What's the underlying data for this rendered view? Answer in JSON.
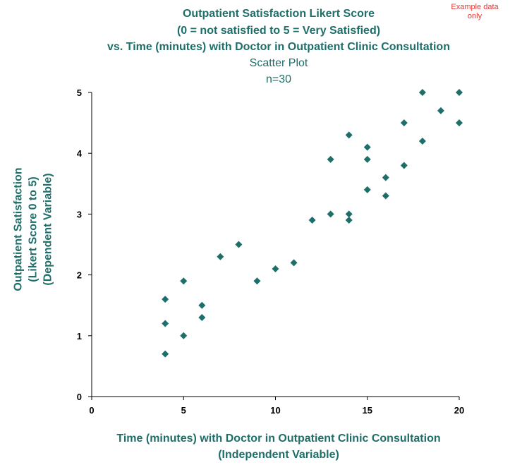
{
  "note": {
    "line1": "Example data",
    "line2": "only"
  },
  "chart_data": {
    "type": "scatter",
    "title": {
      "line1": "Outpatient Satisfaction Likert Score",
      "line2": "(0 = not satisfied to 5 = Very Satisfied)",
      "line3": "vs. Time (minutes) with Doctor in Outpatient Clinic Consultation"
    },
    "subtitle": {
      "line1": "Scatter Plot",
      "line2": "n=30"
    },
    "xlabel": {
      "line1": "Time (minutes) with Doctor in Outpatient Clinic Consultation",
      "line2": "(Independent Variable)"
    },
    "ylabel": {
      "line1": "Outpatient Satisfaction",
      "line2": "(Likert Score 0 to 5)",
      "line3": "(Dependent Variable)"
    },
    "xlim": [
      0,
      20
    ],
    "ylim": [
      0,
      5
    ],
    "xticks": [
      0,
      5,
      10,
      15,
      20
    ],
    "yticks": [
      0,
      1,
      2,
      3,
      4,
      5
    ],
    "grid": false,
    "marker": "diamond",
    "marker_color": "#1e6e6a",
    "points": [
      {
        "x": 4,
        "y": 1.6
      },
      {
        "x": 4,
        "y": 1.2
      },
      {
        "x": 4,
        "y": 0.7
      },
      {
        "x": 5,
        "y": 1.9
      },
      {
        "x": 5,
        "y": 1.0
      },
      {
        "x": 6,
        "y": 1.5
      },
      {
        "x": 6,
        "y": 1.3
      },
      {
        "x": 7,
        "y": 2.3
      },
      {
        "x": 8,
        "y": 2.5
      },
      {
        "x": 9,
        "y": 1.9
      },
      {
        "x": 10,
        "y": 2.1
      },
      {
        "x": 11,
        "y": 2.2
      },
      {
        "x": 12,
        "y": 2.9
      },
      {
        "x": 13,
        "y": 3.9
      },
      {
        "x": 13,
        "y": 3.0
      },
      {
        "x": 14,
        "y": 4.3
      },
      {
        "x": 14,
        "y": 3.0
      },
      {
        "x": 14,
        "y": 2.9
      },
      {
        "x": 15,
        "y": 4.1
      },
      {
        "x": 15,
        "y": 3.9
      },
      {
        "x": 15,
        "y": 3.4
      },
      {
        "x": 16,
        "y": 3.6
      },
      {
        "x": 16,
        "y": 3.3
      },
      {
        "x": 17,
        "y": 4.5
      },
      {
        "x": 17,
        "y": 3.8
      },
      {
        "x": 18,
        "y": 5.0
      },
      {
        "x": 18,
        "y": 4.2
      },
      {
        "x": 19,
        "y": 4.7
      },
      {
        "x": 20,
        "y": 5.0
      },
      {
        "x": 20,
        "y": 4.5
      }
    ]
  }
}
